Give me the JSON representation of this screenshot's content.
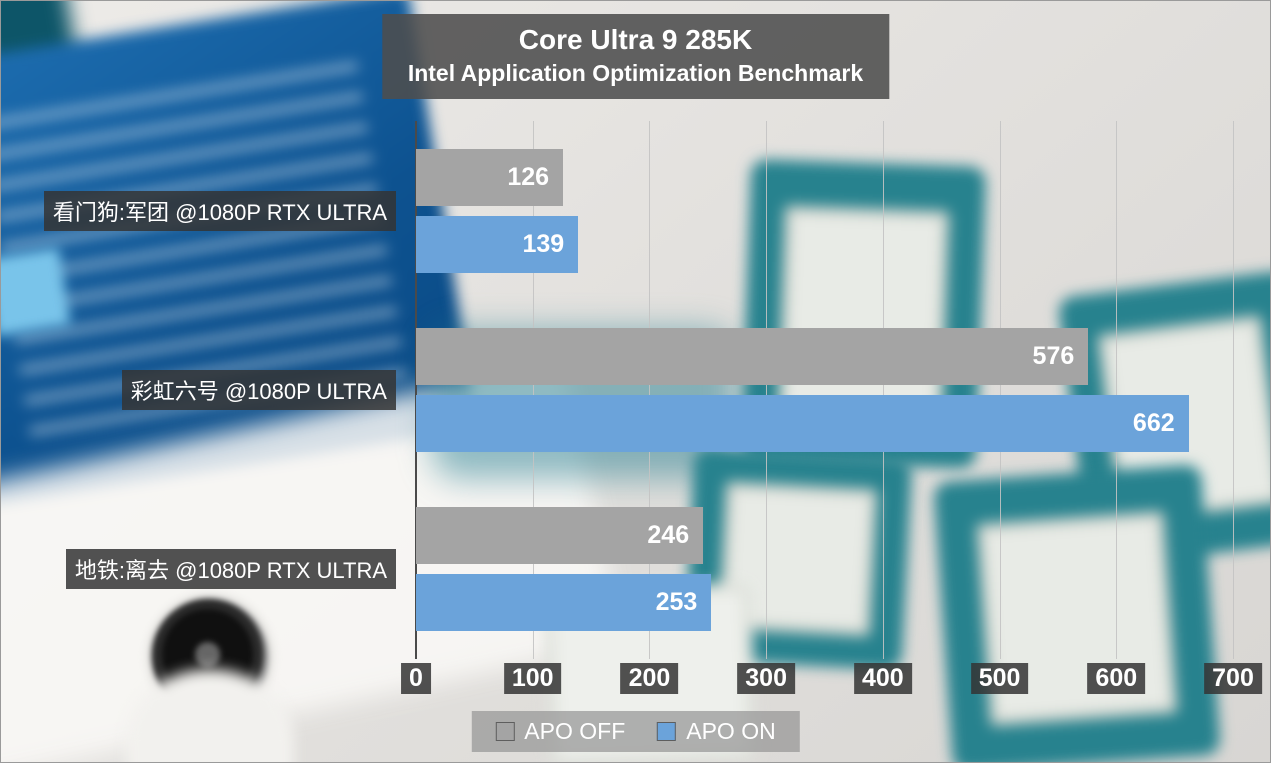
{
  "title": {
    "line1": "Core Ultra 9 285K",
    "line2": "Intel Application Optimization Benchmark"
  },
  "chart_data": {
    "type": "bar",
    "orientation": "horizontal",
    "title": "Core Ultra 9 285K",
    "subtitle": "Intel Application Optimization Benchmark",
    "categories": [
      "看门狗:军团 @1080P RTX ULTRA",
      "彩虹六号 @1080P ULTRA",
      "地铁:离去 @1080P RTX ULTRA"
    ],
    "series": [
      {
        "name": "APO OFF",
        "color": "#a4a4a4",
        "values": [
          126,
          576,
          246
        ]
      },
      {
        "name": "APO ON",
        "color": "#6ba3da",
        "values": [
          139,
          662,
          253
        ]
      }
    ],
    "xlim": [
      0,
      700
    ],
    "x_ticks": [
      0,
      100,
      200,
      300,
      400,
      500,
      600,
      700
    ],
    "grid": true,
    "legend_position": "bottom"
  },
  "legend": {
    "items": [
      {
        "label": "APO OFF",
        "color": "#a4a4a4"
      },
      {
        "label": "APO ON",
        "color": "#6ba3da"
      }
    ]
  },
  "colors": {
    "bar_off": "#a4a4a4",
    "bar_on": "#6ba3da",
    "label_background": "#343434",
    "title_background": "#4d4d4d",
    "axis_line": "#4a4a4a",
    "text": "#ffffff"
  }
}
